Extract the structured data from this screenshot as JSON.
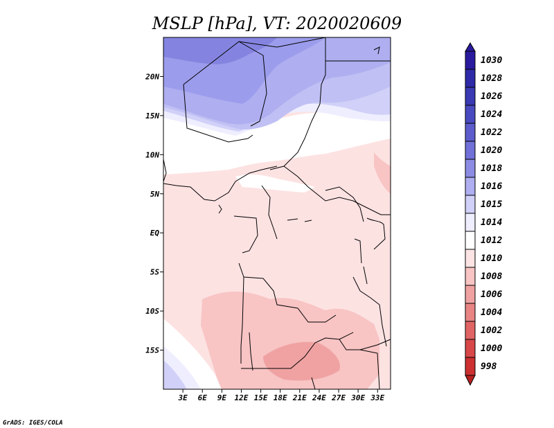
{
  "title": "MSLP [hPa], VT: 2020020609",
  "credit": "GrADS: IGES/COLA",
  "map": {
    "lon_range": [
      0,
      35
    ],
    "lat_range": [
      -20,
      25
    ],
    "lat_ticks": [
      {
        "value": 20,
        "label": "20N"
      },
      {
        "value": 15,
        "label": "15N"
      },
      {
        "value": 10,
        "label": "10N"
      },
      {
        "value": 5,
        "label": "5N"
      },
      {
        "value": 0,
        "label": "EQ"
      },
      {
        "value": -5,
        "label": "5S"
      },
      {
        "value": -10,
        "label": "10S"
      },
      {
        "value": -15,
        "label": "15S"
      }
    ],
    "lon_ticks": [
      {
        "value": 3,
        "label": "3E"
      },
      {
        "value": 6,
        "label": "6E"
      },
      {
        "value": 9,
        "label": "9E"
      },
      {
        "value": 12,
        "label": "12E"
      },
      {
        "value": 15,
        "label": "15E"
      },
      {
        "value": 18,
        "label": "18E"
      },
      {
        "value": 21,
        "label": "21E"
      },
      {
        "value": 24,
        "label": "24E"
      },
      {
        "value": 27,
        "label": "27E"
      },
      {
        "value": 30,
        "label": "30E"
      },
      {
        "value": 33,
        "label": "33E"
      }
    ]
  },
  "colorbar": {
    "levels": [
      {
        "label": "1030",
        "color": "#2a1a9e"
      },
      {
        "label": "1028",
        "color": "#2e2aa8"
      },
      {
        "label": "1026",
        "color": "#3a3ab4"
      },
      {
        "label": "1024",
        "color": "#4a4ac0"
      },
      {
        "label": "1022",
        "color": "#5c5ccc"
      },
      {
        "label": "1020",
        "color": "#7070d8"
      },
      {
        "label": "1018",
        "color": "#8c8ce4"
      },
      {
        "label": "1016",
        "color": "#aeaef0"
      },
      {
        "label": "1015",
        "color": "#d0d0f8"
      },
      {
        "label": "1014",
        "color": "#eeeeff"
      },
      {
        "label": "1012",
        "color": "#ffffff"
      },
      {
        "label": "1010",
        "color": "#fce4e4"
      },
      {
        "label": "1008",
        "color": "#f8c4c4"
      },
      {
        "label": "1006",
        "color": "#f0a2a2"
      },
      {
        "label": "1004",
        "color": "#e88484"
      },
      {
        "label": "1002",
        "color": "#e06464"
      },
      {
        "label": "1000",
        "color": "#d84848"
      },
      {
        "label": "998",
        "color": "#cc3030"
      }
    ],
    "bottom_color": "#b82020"
  }
}
